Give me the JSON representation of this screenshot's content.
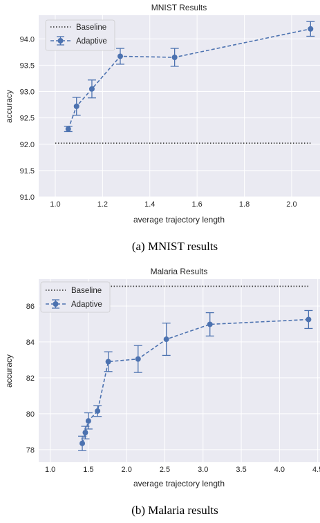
{
  "colors": {
    "plot_bg": "#eaeaf2",
    "grid": "#ffffff",
    "adaptive": "#4c72b0",
    "baseline": "#404040"
  },
  "chart_data": [
    {
      "type": "line",
      "title": "MNIST Results",
      "xlabel": "average trajectory length",
      "ylabel": "accuracy",
      "xlim": [
        0.93,
        2.12
      ],
      "ylim": [
        91.0,
        94.45
      ],
      "xticks": [
        1.0,
        1.2,
        1.4,
        1.6,
        1.8,
        2.0
      ],
      "xtick_labels": [
        "1.0",
        "1.2",
        "1.4",
        "1.6",
        "1.8",
        "2.0"
      ],
      "yticks": [
        91.0,
        91.5,
        92.0,
        92.5,
        93.0,
        93.5,
        94.0
      ],
      "ytick_labels": [
        "91.0",
        "91.5",
        "92.0",
        "92.5",
        "93.0",
        "93.5",
        "94.0"
      ],
      "grid": true,
      "legend_position": "top-left",
      "legend": [
        "Baseline",
        "Adaptive"
      ],
      "baseline": {
        "name": "Baseline",
        "y": 92.02,
        "x": [
          1.0,
          2.08
        ]
      },
      "series": [
        {
          "name": "Adaptive",
          "x": [
            1.055,
            1.09,
            1.155,
            1.275,
            1.505,
            2.08
          ],
          "y": [
            92.29,
            92.72,
            93.05,
            93.67,
            93.65,
            94.19
          ],
          "err": [
            0.05,
            0.17,
            0.17,
            0.15,
            0.17,
            0.14
          ]
        }
      ]
    },
    {
      "type": "line",
      "title": "Malaria Results",
      "xlabel": "average trajectory length",
      "ylabel": "accuracy",
      "xlim": [
        0.85,
        4.53
      ],
      "ylim": [
        77.3,
        87.5
      ],
      "xticks": [
        1.0,
        1.5,
        2.0,
        2.5,
        3.0,
        3.5,
        4.0,
        4.5
      ],
      "xtick_labels": [
        "1.0",
        "1.5",
        "2.0",
        "2.5",
        "3.0",
        "3.5",
        "4.0",
        "4.5"
      ],
      "yticks": [
        78,
        80,
        82,
        84,
        86
      ],
      "ytick_labels": [
        "78",
        "80",
        "82",
        "84",
        "86"
      ],
      "grid": true,
      "legend_position": "top-left",
      "legend": [
        "Baseline",
        "Adaptive"
      ],
      "baseline": {
        "name": "Baseline",
        "y": 87.1,
        "x": [
          1.0,
          4.38
        ]
      },
      "series": [
        {
          "name": "Adaptive",
          "x": [
            1.42,
            1.46,
            1.5,
            1.62,
            1.76,
            2.15,
            2.52,
            3.09,
            4.38
          ],
          "y": [
            78.35,
            78.95,
            79.6,
            80.15,
            82.9,
            83.05,
            84.15,
            84.98,
            85.25
          ],
          "err": [
            0.4,
            0.35,
            0.45,
            0.3,
            0.55,
            0.75,
            0.9,
            0.65,
            0.5
          ]
        }
      ]
    }
  ],
  "captions": {
    "a": "(a) MNIST results",
    "b": "(b) Malaria results"
  }
}
